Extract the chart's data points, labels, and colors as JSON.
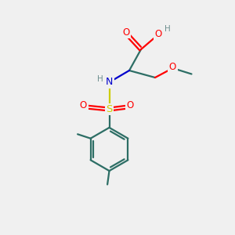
{
  "background_color": "#f0f0f0",
  "bond_color": "#2d6e65",
  "atom_colors": {
    "O": "#ff0000",
    "N": "#0000cc",
    "S": "#cccc00",
    "H": "#6e8f8f"
  },
  "figsize": [
    3.0,
    3.0
  ],
  "dpi": 100,
  "lw": 1.6
}
